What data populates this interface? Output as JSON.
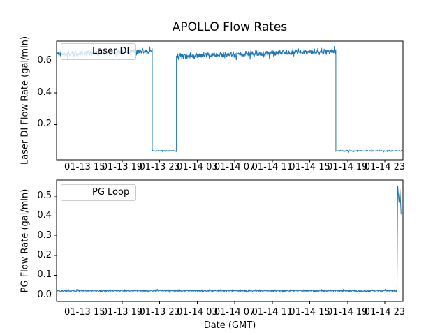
{
  "chart_data": [
    {
      "type": "line",
      "title": "APOLLO Flow Rates",
      "xlabel": "",
      "ylabel": "Laser DI Flow Rate (gal/min)",
      "grid": false,
      "legend_position": "upper left",
      "line_color": "#1f77b4",
      "x_unit": "hours since 01-13 00:00 GMT",
      "xlim": [
        12.0,
        48.94
      ],
      "ylim": [
        -0.022,
        0.725
      ],
      "x_ticks": [
        15,
        19,
        23,
        27,
        31,
        35,
        39,
        43,
        47
      ],
      "x_tick_labels": [
        "01-13 15",
        "01-13 19",
        "01-13 23",
        "01-14 03",
        "01-14 07",
        "01-14 11",
        "01-14 15",
        "01-14 19",
        "01-14 23"
      ],
      "y_ticks": [
        0.2,
        0.4,
        0.6
      ],
      "y_tick_labels": [
        "0.2",
        "0.4",
        "0.6"
      ],
      "series": [
        {
          "name": "Laser DI",
          "segments": [
            {
              "x0": 12.05,
              "y0": 0.642,
              "x1": 22.2,
              "y1": 0.663,
              "noise": 0.013
            },
            {
              "x0": 22.2,
              "y0": 0.034,
              "x1": 24.78,
              "y1": 0.034,
              "noise": 0.0025
            },
            {
              "x0": 24.78,
              "y0": 0.63,
              "x1": 41.78,
              "y1": 0.662,
              "noise": 0.015
            },
            {
              "x0": 41.78,
              "y0": 0.034,
              "x1": 48.92,
              "y1": 0.034,
              "noise": 0.0025
            }
          ]
        }
      ]
    },
    {
      "type": "line",
      "title": "",
      "xlabel": "Date (GMT)",
      "ylabel": "PG Flow Rate (gal/min)",
      "grid": false,
      "legend_position": "upper left",
      "line_color": "#1f77b4",
      "x_unit": "hours since 01-13 00:00 GMT",
      "xlim": [
        12.0,
        48.94
      ],
      "ylim": [
        -0.033,
        0.582
      ],
      "x_ticks": [
        15,
        19,
        23,
        27,
        31,
        35,
        39,
        43,
        47
      ],
      "x_tick_labels": [
        "01-13 15",
        "01-13 19",
        "01-13 23",
        "01-14 03",
        "01-14 07",
        "01-14 11",
        "01-14 15",
        "01-14 19",
        "01-14 23"
      ],
      "y_ticks": [
        0.0,
        0.1,
        0.2,
        0.3,
        0.4,
        0.5
      ],
      "y_tick_labels": [
        "0.0",
        "0.1",
        "0.2",
        "0.3",
        "0.4",
        "0.5"
      ],
      "series": [
        {
          "name": "PG Loop",
          "segments": [
            {
              "x0": 12.05,
              "y0": 0.021,
              "x1": 48.3,
              "y1": 0.021,
              "noise": 0.003
            },
            {
              "x0": 48.3,
              "y0": 0.021,
              "x1": 48.38,
              "y1": 0.553,
              "noise": 0
            },
            {
              "x0": 48.38,
              "y0": 0.553,
              "x1": 48.52,
              "y1": 0.468,
              "noise": 0
            },
            {
              "x0": 48.52,
              "y0": 0.468,
              "x1": 48.62,
              "y1": 0.535,
              "noise": 0
            },
            {
              "x0": 48.62,
              "y0": 0.535,
              "x1": 48.74,
              "y1": 0.408,
              "noise": 0
            }
          ]
        }
      ]
    }
  ]
}
